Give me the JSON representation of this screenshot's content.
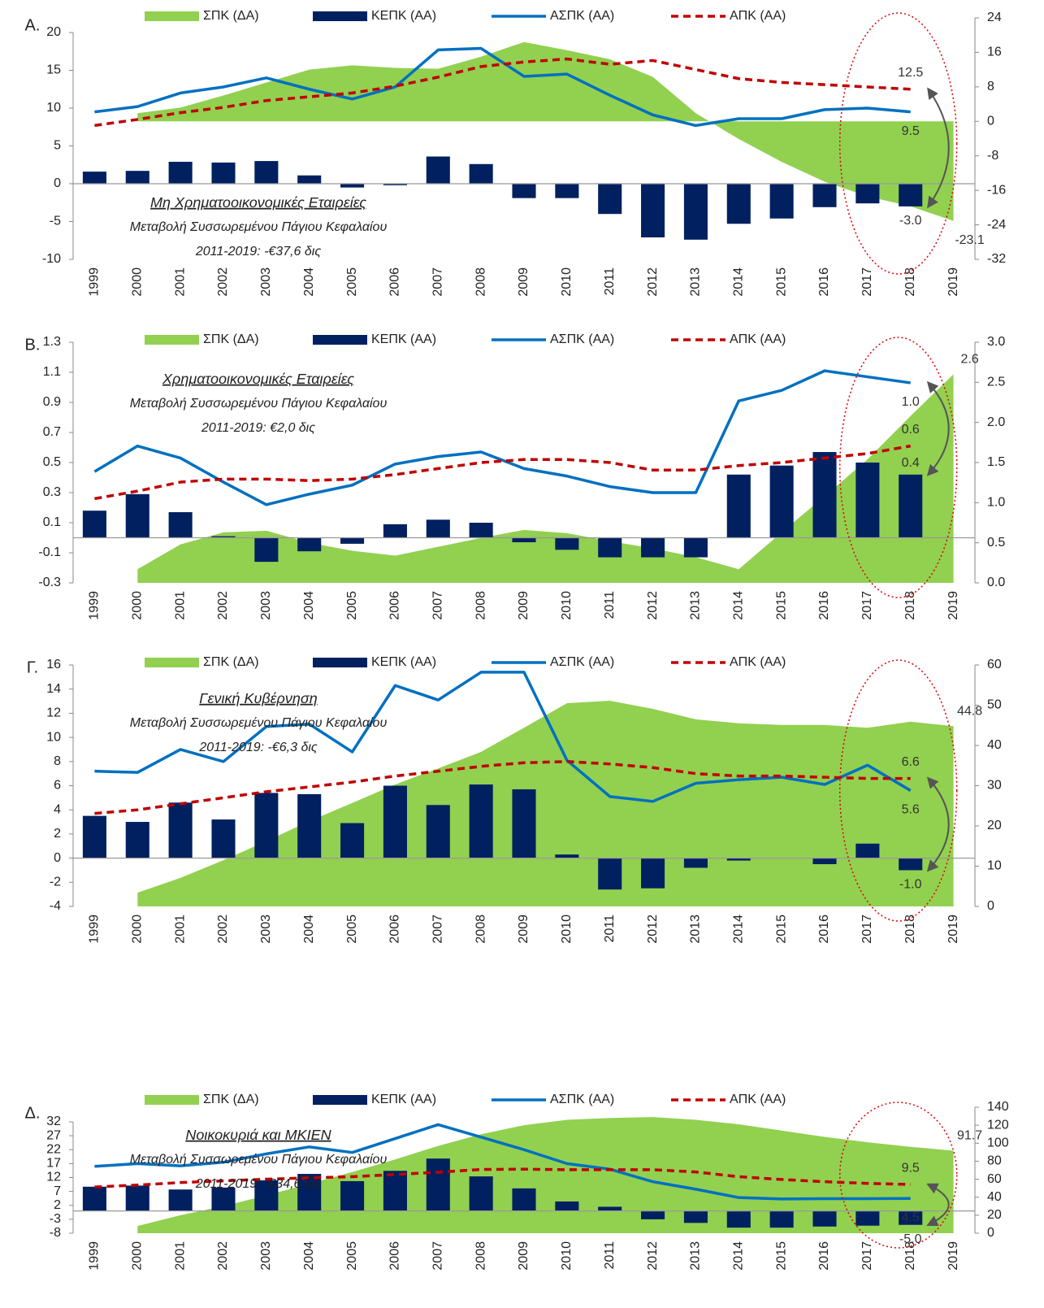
{
  "chart_data": [
    {
      "type": "combo",
      "label": "Α.",
      "title": "Μη Χρηματοοικονομικές Εταιρείες",
      "notes": [
        "Μεταβολή Συσσωρεμένου Πάγιου Κεφαλαίου",
        "2011-2019: -€37,6 δις"
      ],
      "categories": [
        "1999",
        "2000",
        "2001",
        "2002",
        "2003",
        "2004",
        "2005",
        "2006",
        "2007",
        "2008",
        "2009",
        "2010",
        "2011",
        "2012",
        "2013",
        "2014",
        "2015",
        "2016",
        "2017",
        "2018",
        "2019"
      ],
      "ylim": [
        -10,
        20
      ],
      "yticks": [
        -10,
        -5,
        0,
        5,
        10,
        15,
        20
      ],
      "y2lim": [
        -32,
        24
      ],
      "y2ticks": [
        -32,
        -24,
        -16,
        -8,
        0,
        8,
        16,
        24
      ],
      "series": [
        {
          "name": "ΣΠΚ (ΔΑ)",
          "kind": "area",
          "axis": "y2",
          "color": "#92d050",
          "values": [
            null,
            1.9,
            3.2,
            6.0,
            9.0,
            12.0,
            13.0,
            12.4,
            12.2,
            15.0,
            18.4,
            16.5,
            14.4,
            10.3,
            1.9,
            -4.1,
            -9.4,
            -14.0,
            -17.4,
            -19.7,
            -23.1
          ],
          "value_labels": [
            null,
            null,
            null,
            null,
            null,
            null,
            null,
            null,
            null,
            null,
            null,
            null,
            null,
            null,
            null,
            null,
            null,
            null,
            null,
            null,
            "-23.1"
          ]
        },
        {
          "name": "ΚΕΠΚ (ΑΑ)",
          "kind": "bar",
          "color": "#002060",
          "values": [
            1.6,
            1.7,
            2.9,
            2.8,
            3.0,
            1.1,
            -0.5,
            -0.2,
            3.6,
            2.6,
            -1.9,
            -1.9,
            -4.0,
            -7.1,
            -7.4,
            -5.3,
            -4.6,
            -3.1,
            -2.6,
            -3.0,
            null
          ],
          "value_labels": [
            null,
            null,
            null,
            null,
            null,
            null,
            null,
            null,
            null,
            null,
            null,
            null,
            null,
            null,
            null,
            null,
            null,
            null,
            null,
            "-3.0",
            null
          ]
        },
        {
          "name": "ΑΣΠΚ (ΑΑ)",
          "kind": "line",
          "color": "#0070c0",
          "values": [
            9.5,
            10.2,
            12.0,
            12.8,
            14.0,
            12.5,
            11.2,
            12.8,
            17.7,
            17.9,
            14.2,
            14.5,
            11.7,
            9.1,
            7.7,
            8.6,
            8.6,
            9.8,
            10.0,
            9.5,
            null
          ],
          "value_labels": [
            null,
            null,
            null,
            null,
            null,
            null,
            null,
            null,
            null,
            null,
            null,
            null,
            null,
            null,
            null,
            null,
            null,
            null,
            null,
            "9.5",
            null
          ]
        },
        {
          "name": "ΑΠΚ (ΑΑ)",
          "kind": "dashed",
          "color": "#c00000",
          "values": [
            7.7,
            8.5,
            9.4,
            10.1,
            11.0,
            11.5,
            12.0,
            12.9,
            14.1,
            15.5,
            16.1,
            16.5,
            15.8,
            16.3,
            15.1,
            13.9,
            13.4,
            13.1,
            12.8,
            12.5,
            null
          ],
          "value_labels": [
            null,
            null,
            null,
            null,
            null,
            null,
            null,
            null,
            null,
            null,
            null,
            null,
            null,
            null,
            null,
            null,
            null,
            null,
            null,
            "12.5",
            null
          ]
        }
      ]
    },
    {
      "type": "combo",
      "label": "Β.",
      "title": "Χρηματοοικονομικές Εταιρείες",
      "notes": [
        "Μεταβολή Συσσωρεμένου Πάγιου Κεφαλαίου",
        "2011-2019: €2,0 δις"
      ],
      "categories": [
        "1999",
        "2000",
        "2001",
        "2002",
        "2003",
        "2004",
        "2005",
        "2006",
        "2007",
        "2008",
        "2009",
        "2010",
        "2011",
        "2012",
        "2013",
        "2014",
        "2015",
        "2016",
        "2017",
        "2018",
        "2019"
      ],
      "ylim": [
        -0.3,
        1.3
      ],
      "yticks": [
        -0.3,
        -0.1,
        0.1,
        0.3,
        0.5,
        0.7,
        0.9,
        1.1,
        1.3
      ],
      "y2lim": [
        0,
        3
      ],
      "y2ticks": [
        {
          "value": 0,
          "label": "0.0"
        },
        0.5,
        {
          "value": 1,
          "label": "1.0"
        },
        1.5,
        {
          "value": 2,
          "label": "2.0"
        },
        2.5,
        {
          "value": 3,
          "label": "3.0"
        }
      ],
      "series": [
        {
          "name": "ΣΠΚ (ΔΑ)",
          "kind": "area",
          "axis": "y2",
          "color": "#92d050",
          "values": [
            null,
            0.17,
            0.48,
            0.63,
            0.65,
            0.5,
            0.4,
            0.34,
            0.45,
            0.56,
            0.66,
            0.62,
            0.52,
            0.43,
            0.32,
            0.17,
            0.63,
            1.08,
            1.54,
            2.08,
            2.6
          ],
          "value_labels": [
            null,
            null,
            null,
            null,
            null,
            null,
            null,
            null,
            null,
            null,
            null,
            null,
            null,
            null,
            null,
            null,
            null,
            null,
            null,
            null,
            "2.6"
          ]
        },
        {
          "name": "ΚΕΠΚ (ΑΑ)",
          "kind": "bar",
          "color": "#002060",
          "values": [
            0.18,
            0.29,
            0.17,
            0.01,
            -0.16,
            -0.09,
            -0.04,
            0.09,
            0.12,
            0.1,
            -0.03,
            -0.08,
            -0.13,
            -0.13,
            -0.13,
            0.42,
            0.48,
            0.57,
            0.5,
            0.42,
            null
          ],
          "value_labels": [
            null,
            null,
            null,
            null,
            null,
            null,
            null,
            null,
            null,
            null,
            null,
            null,
            null,
            null,
            null,
            null,
            null,
            null,
            null,
            "0.4",
            null
          ]
        },
        {
          "name": "ΑΣΠΚ (ΑΑ)",
          "kind": "line",
          "color": "#0070c0",
          "values": [
            0.44,
            0.61,
            0.53,
            0.37,
            0.22,
            0.29,
            0.35,
            0.49,
            0.54,
            0.57,
            0.46,
            0.41,
            0.34,
            0.3,
            0.3,
            0.91,
            0.98,
            1.11,
            1.07,
            1.03,
            null
          ],
          "value_labels": [
            null,
            null,
            null,
            null,
            null,
            null,
            null,
            null,
            null,
            null,
            null,
            null,
            null,
            null,
            null,
            null,
            null,
            null,
            null,
            "1.0",
            null
          ]
        },
        {
          "name": "ΑΠΚ (ΑΑ)",
          "kind": "dashed",
          "color": "#c00000",
          "values": [
            0.26,
            0.31,
            0.37,
            0.39,
            0.39,
            0.38,
            0.39,
            0.42,
            0.46,
            0.5,
            0.52,
            0.52,
            0.5,
            0.45,
            0.45,
            0.48,
            0.5,
            0.53,
            0.56,
            0.61,
            null
          ],
          "value_labels": [
            null,
            null,
            null,
            null,
            null,
            null,
            null,
            null,
            null,
            null,
            null,
            null,
            null,
            null,
            null,
            null,
            null,
            null,
            null,
            "0.6",
            null
          ]
        }
      ]
    },
    {
      "type": "combo",
      "label": "Γ.",
      "title": "Γενική Κυβέρνηση",
      "notes": [
        "Μεταβολή Συσσωρεμένου Πάγιου Κεφαλαίου",
        "2011-2019: -€6,3 δις"
      ],
      "categories": [
        "1999",
        "2000",
        "2001",
        "2002",
        "2003",
        "2004",
        "2005",
        "2006",
        "2007",
        "2008",
        "2009",
        "2010",
        "2011",
        "2012",
        "2013",
        "2014",
        "2015",
        "2016",
        "2017",
        "2018",
        "2019"
      ],
      "ylim": [
        -4,
        16
      ],
      "yticks": [
        -4,
        -2,
        0,
        2,
        4,
        6,
        8,
        10,
        12,
        14,
        16
      ],
      "y2lim": [
        0,
        60
      ],
      "y2ticks": [
        0,
        10,
        20,
        30,
        40,
        50,
        60
      ],
      "series": [
        {
          "name": "ΣΠΚ (ΔΑ)",
          "kind": "area",
          "axis": "y2",
          "color": "#92d050",
          "values": [
            null,
            3.4,
            7.1,
            11.5,
            16.2,
            21.2,
            25.7,
            30.3,
            34.3,
            38.4,
            44.4,
            50.5,
            51.1,
            49.1,
            46.5,
            45.5,
            45.1,
            45.1,
            44.4,
            45.9,
            44.8
          ],
          "value_labels": [
            null,
            null,
            null,
            null,
            null,
            null,
            null,
            null,
            null,
            null,
            null,
            null,
            null,
            null,
            null,
            null,
            null,
            null,
            null,
            null,
            "44.8"
          ]
        },
        {
          "name": "ΚΕΠΚ (ΑΑ)",
          "kind": "bar",
          "color": "#002060",
          "values": [
            3.5,
            3.0,
            4.6,
            3.2,
            5.4,
            5.3,
            2.9,
            6.0,
            4.4,
            6.1,
            5.7,
            0.3,
            -2.6,
            -2.5,
            -0.8,
            -0.2,
            0.0,
            -0.5,
            1.2,
            -1.0,
            null
          ],
          "value_labels": [
            null,
            null,
            null,
            null,
            null,
            null,
            null,
            null,
            null,
            null,
            null,
            null,
            null,
            null,
            null,
            null,
            null,
            null,
            null,
            "-1.0",
            null
          ]
        },
        {
          "name": "ΑΣΠΚ (ΑΑ)",
          "kind": "line",
          "color": "#0070c0",
          "values": [
            7.2,
            7.1,
            9.0,
            8.0,
            10.9,
            11.1,
            8.8,
            14.3,
            13.1,
            15.4,
            15.4,
            8.1,
            5.1,
            4.7,
            6.2,
            6.5,
            6.7,
            6.1,
            7.7,
            5.6,
            null
          ],
          "value_labels": [
            null,
            null,
            null,
            null,
            null,
            null,
            null,
            null,
            null,
            null,
            null,
            null,
            null,
            null,
            null,
            null,
            null,
            null,
            null,
            "5.6",
            null
          ]
        },
        {
          "name": "ΑΠΚ (ΑΑ)",
          "kind": "dashed",
          "color": "#c00000",
          "values": [
            3.7,
            4.0,
            4.5,
            5.0,
            5.5,
            5.9,
            6.3,
            6.8,
            7.2,
            7.6,
            7.9,
            8.0,
            7.8,
            7.5,
            7.0,
            6.8,
            6.8,
            6.7,
            6.6,
            6.6,
            null
          ],
          "value_labels": [
            null,
            null,
            null,
            null,
            null,
            null,
            null,
            null,
            null,
            null,
            null,
            null,
            null,
            null,
            null,
            null,
            null,
            null,
            null,
            "6.6",
            null
          ]
        }
      ]
    },
    {
      "type": "combo",
      "label": "Δ.",
      "title": "Νοικοκυριά και ΜΚΙΕΝ",
      "notes": [
        "Μεταβολή Συσσωρεμένου Πάγιου Κεφαλαίου",
        "2011-2019: -€34,6 δις"
      ],
      "categories": [
        "1999",
        "2000",
        "2001",
        "2002",
        "2003",
        "2004",
        "2005",
        "2006",
        "2007",
        "2008",
        "2009",
        "2010",
        "2011",
        "2012",
        "2013",
        "2014",
        "2015",
        "2016",
        "2017",
        "2018",
        "2019"
      ],
      "ylim": [
        -8,
        32
      ],
      "yticks": [
        -8,
        -3,
        2,
        7,
        12,
        17,
        22,
        27,
        32
      ],
      "y2lim": [
        0,
        140
      ],
      "y2ticks": [
        0,
        20,
        40,
        60,
        80,
        100,
        120,
        140
      ],
      "series": [
        {
          "name": "ΣΠΚ (ΔΑ)",
          "kind": "area",
          "axis": "y2",
          "color": "#92d050",
          "values": [
            null,
            8,
            20,
            30,
            42,
            55,
            68,
            82,
            97,
            110,
            120,
            126,
            128,
            129,
            126,
            121,
            114,
            107,
            101,
            96,
            91.7
          ],
          "value_labels": [
            null,
            null,
            null,
            null,
            null,
            null,
            null,
            null,
            null,
            null,
            null,
            null,
            null,
            null,
            null,
            null,
            null,
            null,
            null,
            null,
            "91.7"
          ]
        },
        {
          "name": "ΚΕΠΚ (ΑΑ)",
          "kind": "bar",
          "color": "#002060",
          "values": [
            8.7,
            9.1,
            7.7,
            8.4,
            11.0,
            13.3,
            10.7,
            14.4,
            18.8,
            12.4,
            8.1,
            3.4,
            1.5,
            -3.0,
            -4.3,
            -6.0,
            -6.0,
            -5.6,
            -5.3,
            -5.0,
            null
          ],
          "value_labels": [
            null,
            null,
            null,
            null,
            null,
            null,
            null,
            null,
            null,
            null,
            null,
            null,
            null,
            null,
            null,
            null,
            null,
            null,
            null,
            "-5.0",
            null
          ]
        },
        {
          "name": "ΑΣΠΚ (ΑΑ)",
          "kind": "line",
          "color": "#0070c0",
          "values": [
            16,
            17,
            16.2,
            17.5,
            20.5,
            23,
            21,
            26,
            31,
            26.5,
            22,
            17,
            15,
            10.5,
            7.8,
            4.8,
            4.3,
            4.4,
            4.4,
            4.5,
            null
          ],
          "value_labels": [
            null,
            null,
            null,
            null,
            null,
            null,
            null,
            null,
            null,
            null,
            null,
            null,
            null,
            null,
            null,
            null,
            null,
            null,
            null,
            "4.5",
            null
          ]
        },
        {
          "name": "ΑΠΚ (ΑΑ)",
          "kind": "dashed",
          "color": "#c00000",
          "values": [
            8.6,
            9.3,
            10.2,
            10.8,
            11.4,
            11.9,
            12.3,
            13.1,
            13.9,
            14.9,
            15.0,
            14.8,
            14.8,
            14.8,
            14.0,
            12.3,
            11.3,
            10.5,
            9.9,
            9.5,
            null
          ],
          "value_labels": [
            null,
            null,
            null,
            null,
            null,
            null,
            null,
            null,
            null,
            null,
            null,
            null,
            null,
            null,
            null,
            null,
            null,
            null,
            null,
            "9.5",
            null
          ]
        }
      ]
    }
  ]
}
